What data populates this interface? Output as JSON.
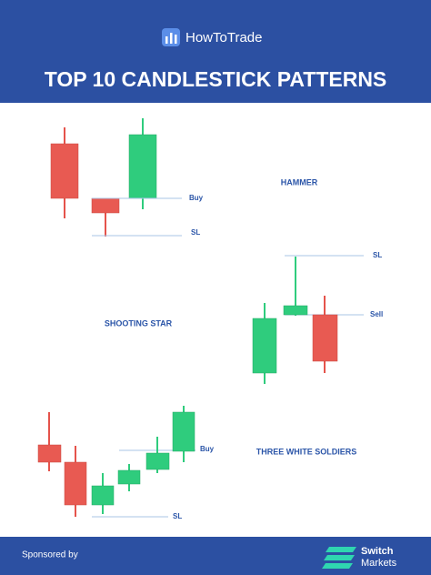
{
  "header": {
    "brand": "HowToTrade",
    "title": "TOP 10 CANDLESTICK PATTERNS"
  },
  "patterns": [
    {
      "name": "HAMMER",
      "labels": [
        "Buy",
        "SL"
      ]
    },
    {
      "name": "SHOOTING STAR",
      "labels": [
        "SL",
        "Sell"
      ]
    },
    {
      "name": "THREE WHITE SOLDIERS",
      "labels": [
        "Buy",
        "SL"
      ]
    }
  ],
  "footer": {
    "sponsored": "Sponsored by",
    "sponsor_line1": "Switch",
    "sponsor_line2": "Markets"
  }
}
